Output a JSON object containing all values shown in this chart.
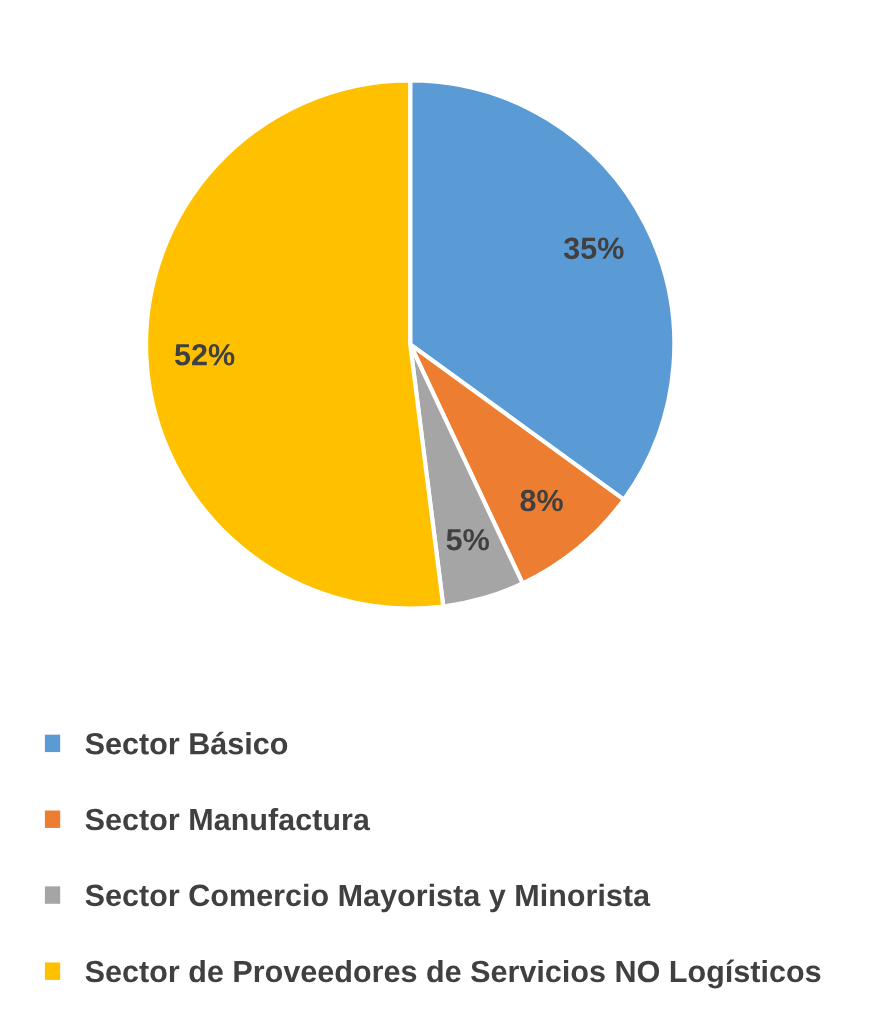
{
  "chart_data": {
    "type": "pie",
    "categories": [
      "Sector Básico",
      "Sector Manufactura",
      "Sector Comercio Mayorista y Minorista",
      "Sector de Proveedores de Servicios NO Logísticos"
    ],
    "values": [
      35,
      8,
      5,
      52
    ],
    "colors": [
      "#5b9bd5",
      "#ed7d31",
      "#a5a5a5",
      "#ffc000"
    ],
    "value_labels": [
      "35%",
      "8%",
      "5%",
      "52%"
    ],
    "legend": "bottom"
  }
}
